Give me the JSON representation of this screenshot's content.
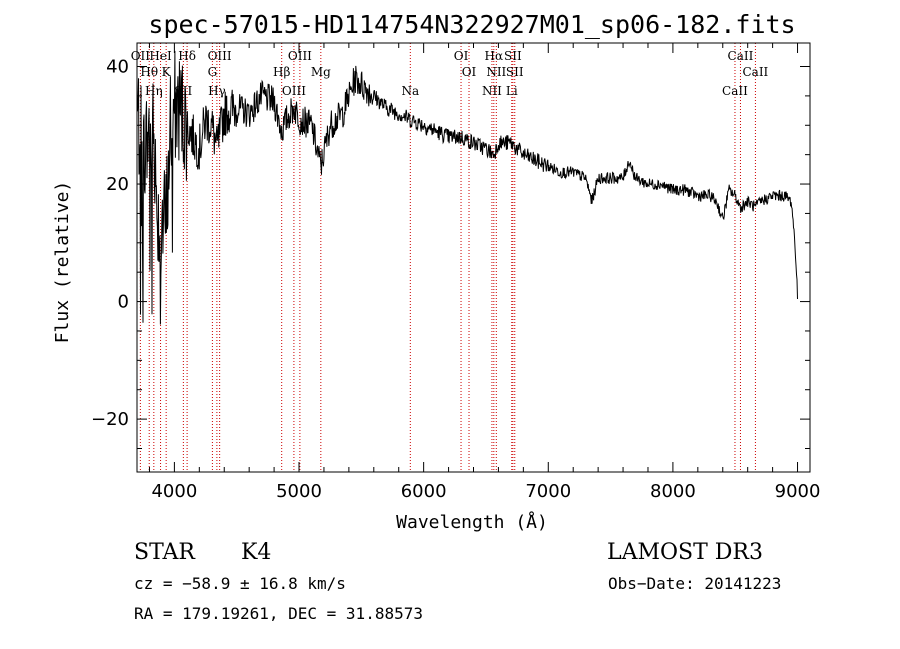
{
  "chart_data": {
    "type": "line",
    "title": "spec-57015-HD114754N322927M01_sp06-182.fits",
    "xlabel": "Wavelength (Å)",
    "ylabel": "Flux (relative)",
    "xlim": [
      3700,
      9100
    ],
    "ylim": [
      -29,
      44
    ],
    "x_ticks": [
      4000,
      5000,
      6000,
      7000,
      8000,
      9000
    ],
    "y_ticks": [
      -20,
      0,
      20,
      40
    ],
    "series": [
      {
        "name": "spectrum",
        "x": [
          3700,
          3760,
          3820,
          3880,
          3934,
          3968,
          4000,
          4050,
          4101,
          4150,
          4200,
          4250,
          4300,
          4340,
          4400,
          4500,
          4600,
          4700,
          4800,
          4861,
          4900,
          4960,
          5007,
          5100,
          5175,
          5250,
          5300,
          5350,
          5400,
          5450,
          5500,
          5600,
          5700,
          5800,
          5893,
          6000,
          6100,
          6200,
          6300,
          6400,
          6500,
          6563,
          6600,
          6700,
          6800,
          6900,
          7000,
          7100,
          7200,
          7300,
          7350,
          7400,
          7500,
          7600,
          7650,
          7700,
          7800,
          7900,
          8000,
          8100,
          8200,
          8300,
          8350,
          8400,
          8450,
          8500,
          8542,
          8600,
          8662,
          8700,
          8800,
          8900,
          8950,
          8980,
          9000
        ],
        "y": [
          32,
          25,
          31,
          12,
          14,
          30,
          33,
          33,
          30,
          28,
          26,
          31,
          30,
          26,
          32,
          33,
          32,
          35,
          34,
          29,
          31,
          33,
          31,
          30,
          23,
          30,
          31,
          32,
          35,
          38,
          37,
          35,
          33,
          32,
          31,
          30,
          29,
          28,
          28,
          27,
          26,
          25,
          27,
          27,
          25,
          24,
          23,
          22,
          22,
          21,
          17,
          21,
          21,
          21,
          24,
          21,
          20,
          20,
          19,
          19,
          18,
          18,
          17,
          14,
          19,
          18,
          16,
          17,
          16,
          17,
          18,
          18,
          17,
          10,
          1
        ]
      }
    ],
    "spectral_lines": [
      {
        "name": "OII",
        "wavelength": 3727
      },
      {
        "name": "Hθ",
        "wavelength": 3798
      },
      {
        "name": "Hη",
        "wavelength": 3835
      },
      {
        "name": "HeI",
        "wavelength": 3889
      },
      {
        "name": "K",
        "wavelength": 3934
      },
      {
        "name": "SII",
        "wavelength": 4072
      },
      {
        "name": "Hδ",
        "wavelength": 4102
      },
      {
        "name": "G",
        "wavelength": 4305
      },
      {
        "name": "Hγ",
        "wavelength": 4341
      },
      {
        "name": "OIII",
        "wavelength": 4363
      },
      {
        "name": "Hβ",
        "wavelength": 4861
      },
      {
        "name": "OIII",
        "wavelength": 4959
      },
      {
        "name": "OIII",
        "wavelength": 5007
      },
      {
        "name": "Mg",
        "wavelength": 5175
      },
      {
        "name": "Na",
        "wavelength": 5893
      },
      {
        "name": "OI",
        "wavelength": 6300
      },
      {
        "name": "OI",
        "wavelength": 6364
      },
      {
        "name": "NII",
        "wavelength": 6548
      },
      {
        "name": "Hα",
        "wavelength": 6563
      },
      {
        "name": "NII",
        "wavelength": 6583
      },
      {
        "name": "Li",
        "wavelength": 6707
      },
      {
        "name": "SII",
        "wavelength": 6716
      },
      {
        "name": "SII",
        "wavelength": 6731
      },
      {
        "name": "CaII",
        "wavelength": 8498
      },
      {
        "name": "CaII",
        "wavelength": 8542
      },
      {
        "name": "CaII",
        "wavelength": 8662
      }
    ],
    "colors": {
      "spectrum": "#000000",
      "lines": "#cc0000",
      "axes": "#000000"
    }
  },
  "info": {
    "class": "STAR",
    "subclass": "K4",
    "survey": "LAMOST DR3",
    "cz": "cz = −58.9 ± 16.8 km/s",
    "obs_date": "Obs−Date: 20141223",
    "radec": "RA = 179.19261, DEC =  31.88573"
  }
}
